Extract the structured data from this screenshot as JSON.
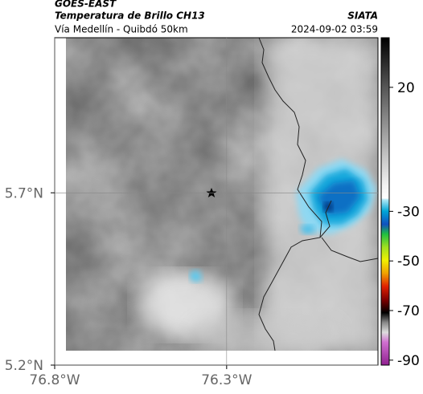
{
  "header": {
    "title": "GOES-EAST",
    "subtitle": "Temperatura de Brillo CH13",
    "region": "Vía Medellín - Quibdó 50km",
    "source": "SIATA",
    "datetime": "2024-09-02 03:59"
  },
  "chart_data": {
    "type": "map",
    "xlim": [
      -76.8,
      -75.86
    ],
    "ylim": [
      5.2,
      6.15
    ],
    "xticks": [
      {
        "value": -76.8,
        "label": "76.8°W"
      },
      {
        "value": -76.3,
        "label": "76.3°W"
      }
    ],
    "yticks": [
      {
        "value": 5.2,
        "label": "5.2°N"
      },
      {
        "value": 5.7,
        "label": "5.7°N"
      }
    ],
    "colorbar": {
      "lim": [
        -92,
        40
      ],
      "ticks": [
        20,
        -30,
        -50,
        -70,
        -90
      ]
    }
  }
}
